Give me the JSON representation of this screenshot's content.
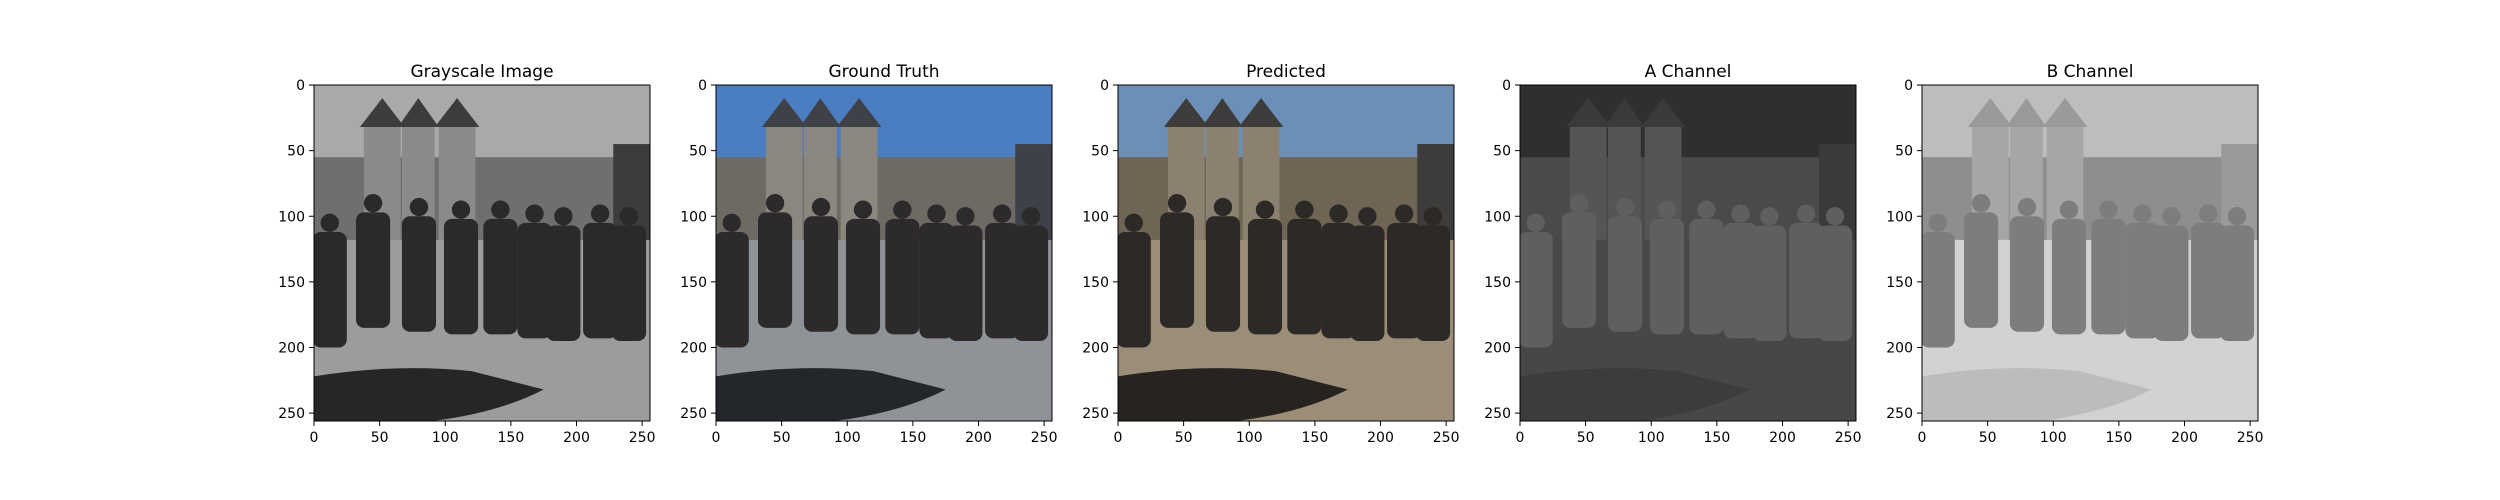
{
  "chart_data": [
    {
      "type": "image",
      "title": "Grayscale Image",
      "xlim": [
        0,
        256
      ],
      "ylim": [
        256,
        0
      ],
      "xticks": [
        0,
        50,
        100,
        150,
        200,
        250
      ],
      "yticks": [
        0,
        50,
        100,
        150,
        200,
        250
      ],
      "palette": {
        "sky": "#a9a9a9",
        "wall": "#6f6f6f",
        "tower": "#8a8a8a",
        "roof": "#3c3c3c",
        "people": "#2a2a2a",
        "ground": "#9c9c9c",
        "shadow": "#262626"
      }
    },
    {
      "type": "image",
      "title": "Ground Truth",
      "xlim": [
        0,
        256
      ],
      "ylim": [
        256,
        0
      ],
      "xticks": [
        0,
        50,
        100,
        150,
        200,
        250
      ],
      "yticks": [
        0,
        50,
        100,
        150,
        200,
        250
      ],
      "palette": {
        "sky": "#4a7ec0",
        "wall": "#6d6a64",
        "tower": "#8b877f",
        "roof": "#3e4147",
        "people": "#2d2a2c",
        "ground": "#8f9296",
        "shadow": "#23262b"
      }
    },
    {
      "type": "image",
      "title": "Predicted",
      "xlim": [
        0,
        256
      ],
      "ylim": [
        256,
        0
      ],
      "xticks": [
        0,
        50,
        100,
        150,
        200,
        250
      ],
      "yticks": [
        0,
        50,
        100,
        150,
        200,
        250
      ],
      "palette": {
        "sky": "#6b8fb6",
        "wall": "#6e6555",
        "tower": "#8c8170",
        "roof": "#3d3c3b",
        "people": "#2c2926",
        "ground": "#9a8e78",
        "shadow": "#262320"
      }
    },
    {
      "type": "image",
      "title": "A Channel",
      "xlim": [
        0,
        256
      ],
      "ylim": [
        256,
        0
      ],
      "xticks": [
        0,
        50,
        100,
        150,
        200,
        250
      ],
      "yticks": [
        0,
        50,
        100,
        150,
        200,
        250
      ],
      "palette": {
        "sky": "#2f2f2f",
        "wall": "#4a4a4a",
        "tower": "#555555",
        "roof": "#3a3a3a",
        "people": "#5f5f5f",
        "ground": "#474747",
        "shadow": "#3c3c3c"
      }
    },
    {
      "type": "image",
      "title": "B Channel",
      "xlim": [
        0,
        256
      ],
      "ylim": [
        256,
        0
      ],
      "xticks": [
        0,
        50,
        100,
        150,
        200,
        250
      ],
      "yticks": [
        0,
        50,
        100,
        150,
        200,
        250
      ],
      "palette": {
        "sky": "#bdbdbd",
        "wall": "#8e8e8e",
        "tower": "#a6a6a6",
        "roof": "#9a9a9a",
        "people": "#7d7d7d",
        "ground": "#d2d2d2",
        "shadow": "#bcbcbc"
      }
    }
  ]
}
